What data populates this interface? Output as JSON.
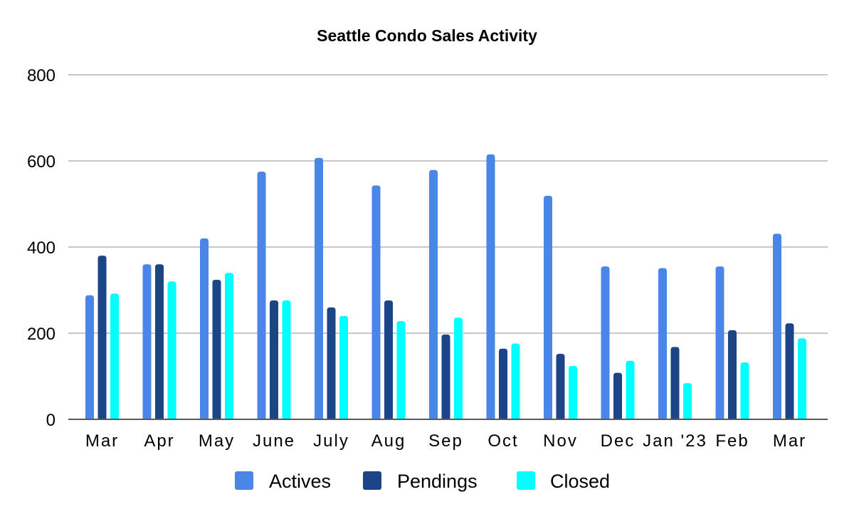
{
  "chart_data": {
    "type": "bar",
    "title": "Seattle Condo Sales Activity",
    "xlabel": "",
    "ylabel": "",
    "ylim": [
      0,
      800
    ],
    "yticks": [
      0,
      200,
      400,
      600,
      800
    ],
    "grid": true,
    "legend_position": "bottom",
    "categories": [
      "Mar",
      "Apr",
      "May",
      "June",
      "July",
      "Aug",
      "Sep",
      "Oct",
      "Nov",
      "Dec",
      "Jan '23",
      "Feb",
      "Mar"
    ],
    "series": [
      {
        "name": "Actives",
        "color": "#4a86e8",
        "values": [
          288,
          360,
          420,
          575,
          607,
          543,
          579,
          615,
          519,
          355,
          351,
          355,
          431
        ]
      },
      {
        "name": "Pendings",
        "color": "#1c4587",
        "values": [
          380,
          360,
          324,
          276,
          260,
          276,
          197,
          164,
          152,
          108,
          168,
          207,
          223
        ]
      },
      {
        "name": "Closed",
        "color": "#00ffff",
        "values": [
          292,
          320,
          340,
          276,
          240,
          228,
          236,
          176,
          124,
          136,
          84,
          132,
          188
        ]
      }
    ]
  }
}
